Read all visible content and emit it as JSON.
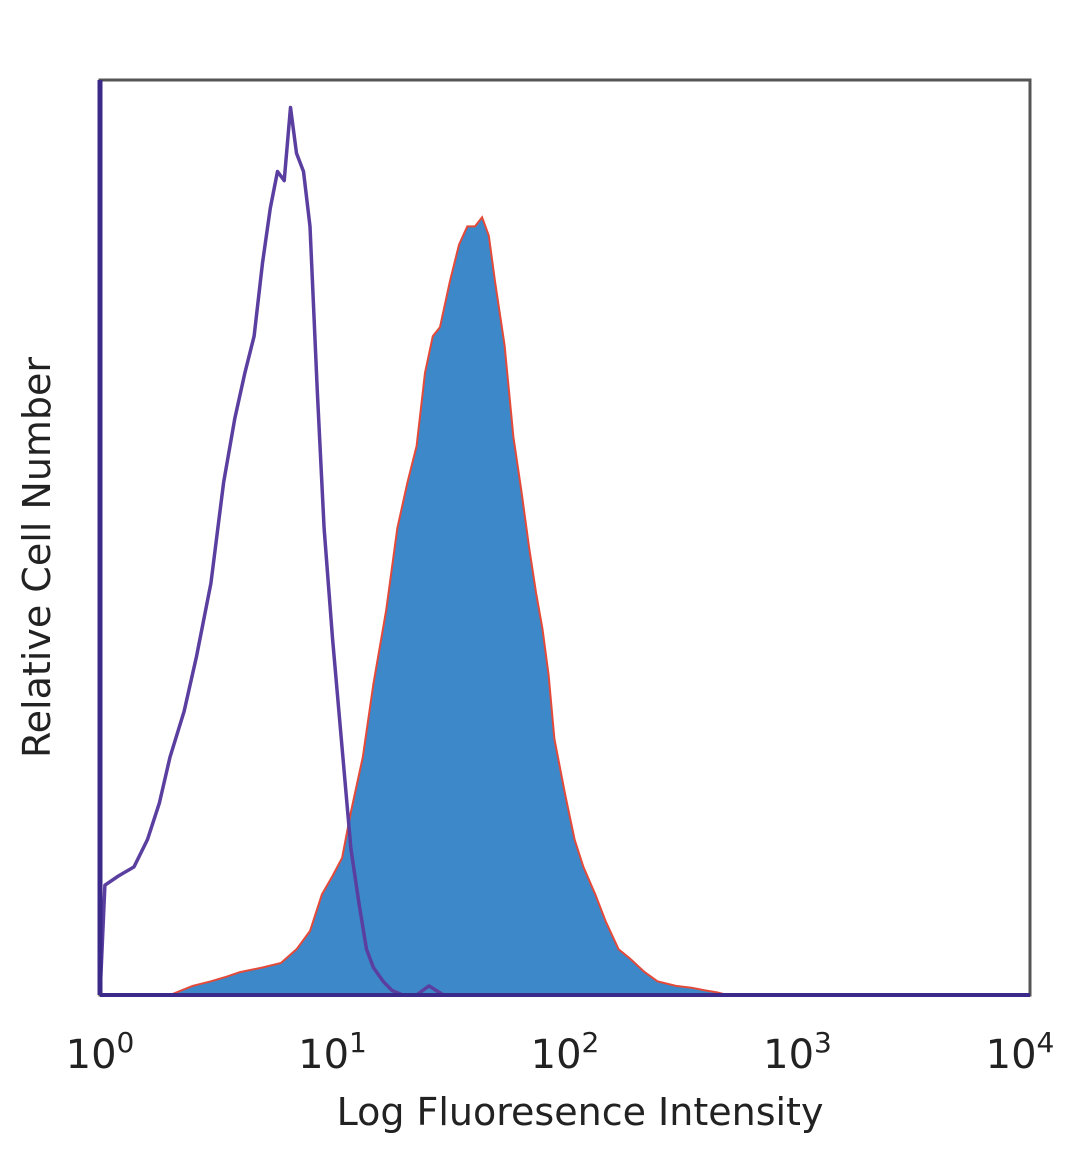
{
  "chart_data": {
    "type": "area",
    "title": "",
    "xlabel": "Log Fluoresence Intensity",
    "ylabel": "Relative Cell Number",
    "x_scale": "log",
    "xlim": [
      1,
      10000
    ],
    "ylim": [
      0,
      1.0
    ],
    "grid": false,
    "x_ticks": [
      {
        "base": "10",
        "exp": "0",
        "value": 1
      },
      {
        "base": "10",
        "exp": "1",
        "value": 10
      },
      {
        "base": "10",
        "exp": "2",
        "value": 100
      },
      {
        "base": "10",
        "exp": "3",
        "value": 1000
      },
      {
        "base": "10",
        "exp": "4",
        "value": 10000
      }
    ],
    "series": [
      {
        "style": "outline",
        "color": "#5b3fa0",
        "x": [
          1.0,
          1.05,
          1.2,
          1.4,
          1.6,
          1.8,
          2.0,
          2.3,
          2.6,
          3.0,
          3.4,
          3.8,
          4.2,
          4.6,
          5.0,
          5.4,
          5.8,
          6.2,
          6.6,
          7.0,
          7.5,
          8.0,
          8.6,
          9.2,
          10.0,
          11.0,
          12.0,
          13.0,
          14.0,
          15.0,
          16.5,
          18.0,
          20.0,
          23.0,
          26.0,
          30.0,
          10000.0
        ],
        "values": [
          0.0,
          0.12,
          0.13,
          0.14,
          0.17,
          0.21,
          0.26,
          0.31,
          0.37,
          0.45,
          0.56,
          0.63,
          0.68,
          0.72,
          0.8,
          0.86,
          0.9,
          0.89,
          0.97,
          0.92,
          0.9,
          0.84,
          0.66,
          0.51,
          0.39,
          0.27,
          0.16,
          0.1,
          0.05,
          0.03,
          0.015,
          0.005,
          0.0,
          0.0,
          0.01,
          0.0,
          0.0
        ]
      },
      {
        "style": "filled",
        "color": "#3d88c8",
        "edge_color": "#e34a3a",
        "x": [
          1.0,
          2.0,
          2.5,
          3.0,
          3.5,
          4.0,
          5.0,
          6.0,
          7.0,
          8.0,
          9.0,
          10.0,
          11.0,
          12.0,
          13.5,
          15.0,
          17.0,
          19.0,
          21.0,
          23.0,
          25.0,
          27.0,
          29.0,
          32.0,
          35.0,
          38.0,
          41.0,
          44.0,
          47.0,
          50.0,
          55.0,
          60.0,
          65.0,
          70.0,
          75.0,
          80.0,
          85.0,
          90.0,
          100.0,
          110.0,
          120.0,
          135.0,
          150.0,
          170.0,
          190.0,
          220.0,
          250.0,
          300.0,
          350.0,
          400.0,
          450.0,
          500.0,
          10000.0
        ],
        "values": [
          0.0,
          0.0,
          0.01,
          0.015,
          0.02,
          0.025,
          0.03,
          0.035,
          0.05,
          0.07,
          0.11,
          0.13,
          0.15,
          0.2,
          0.26,
          0.34,
          0.42,
          0.51,
          0.56,
          0.6,
          0.68,
          0.72,
          0.73,
          0.78,
          0.82,
          0.84,
          0.84,
          0.85,
          0.83,
          0.78,
          0.71,
          0.61,
          0.55,
          0.49,
          0.44,
          0.4,
          0.35,
          0.28,
          0.22,
          0.17,
          0.14,
          0.11,
          0.08,
          0.05,
          0.04,
          0.025,
          0.015,
          0.01,
          0.008,
          0.005,
          0.003,
          0.0,
          0.0
        ]
      }
    ]
  }
}
